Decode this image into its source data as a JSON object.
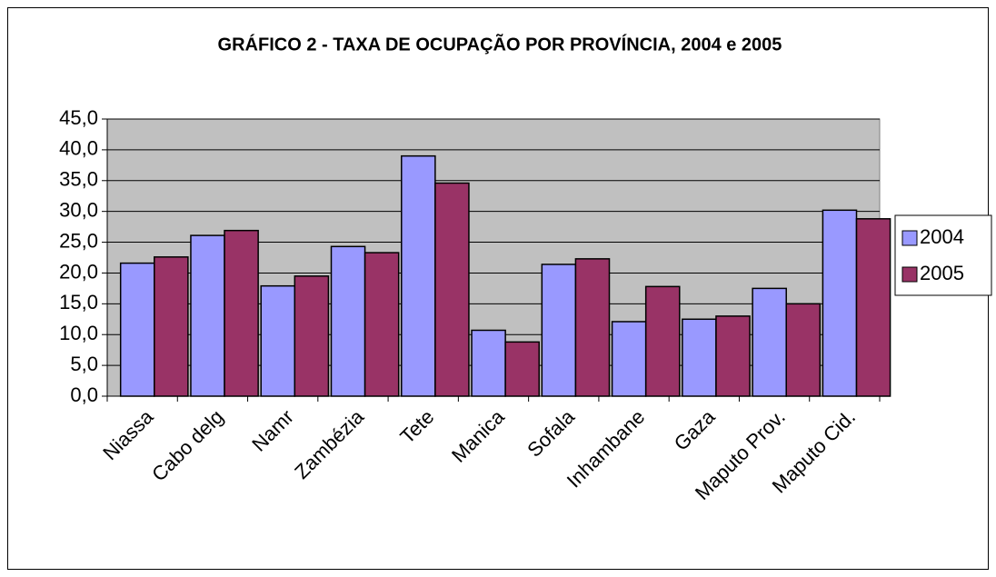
{
  "chart_data": {
    "type": "bar",
    "title": "GRÁFICO 2 - TAXA DE OCUPAÇÃO POR PROVÍNCIA, 2004 e 2005",
    "categories": [
      "Niassa",
      "Cabo delg",
      "Namr",
      "Zambézia",
      "Tete",
      "Manica",
      "Sofala",
      "Inhambane",
      "Gaza",
      "Maputo Prov.",
      "Maputo Cid."
    ],
    "series": [
      {
        "name": "2004",
        "color": "#9999ff",
        "values": [
          21.6,
          26.1,
          17.9,
          24.3,
          39.0,
          10.7,
          21.4,
          12.1,
          12.5,
          17.5,
          30.2
        ]
      },
      {
        "name": "2005",
        "color": "#993366",
        "values": [
          22.6,
          26.9,
          19.5,
          23.3,
          34.6,
          8.8,
          22.3,
          17.8,
          13.0,
          15.0,
          28.8
        ]
      }
    ],
    "ylim": [
      0,
      45
    ],
    "yticks": [
      {
        "value": 0,
        "label": "0,0"
      },
      {
        "value": 5,
        "label": "5,0"
      },
      {
        "value": 10,
        "label": "10,0"
      },
      {
        "value": 15,
        "label": "15,0"
      },
      {
        "value": 20,
        "label": "20,0"
      },
      {
        "value": 25,
        "label": "25,0"
      },
      {
        "value": 30,
        "label": "30,0"
      },
      {
        "value": 35,
        "label": "35,0"
      },
      {
        "value": 40,
        "label": "40,0"
      },
      {
        "value": 45,
        "label": "45,0"
      }
    ],
    "grid": true,
    "plot_background": "#c0c0c0",
    "legend": "right"
  }
}
